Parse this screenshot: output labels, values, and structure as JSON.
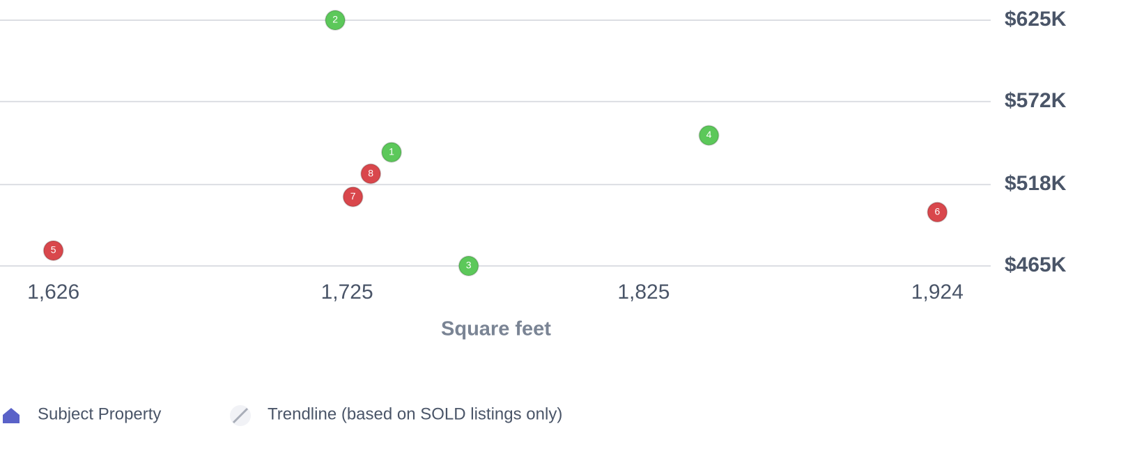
{
  "chart_data": {
    "type": "scatter",
    "xlabel": "Square feet",
    "xlim": [
      1608,
      1942
    ],
    "xticks": [
      {
        "value": 1626,
        "label": "1,626"
      },
      {
        "value": 1725,
        "label": "1,725"
      },
      {
        "value": 1825,
        "label": "1,825"
      },
      {
        "value": 1924,
        "label": "1,924"
      }
    ],
    "ylim": [
      465000,
      625000
    ],
    "yticks": [
      {
        "value": 465000,
        "label": "$465K"
      },
      {
        "value": 518000,
        "label": "$518K"
      },
      {
        "value": 572000,
        "label": "$572K"
      },
      {
        "value": 625000,
        "label": "$625K"
      }
    ],
    "grid": true,
    "series": [
      {
        "color": "#5cc85a",
        "labels": [
          "1",
          "2",
          "3",
          "4"
        ],
        "x": [
          1740,
          1721,
          1766,
          1847
        ],
        "values": [
          539000,
          625000,
          465000,
          550000
        ]
      },
      {
        "color": "#d9474c",
        "labels": [
          "5",
          "6",
          "7",
          "8"
        ],
        "x": [
          1626,
          1924,
          1727,
          1733
        ],
        "values": [
          475000,
          500000,
          510000,
          525000
        ]
      }
    ],
    "legend_items": [
      "Subject Property",
      "Trendline (based on SOLD listings only)"
    ]
  }
}
